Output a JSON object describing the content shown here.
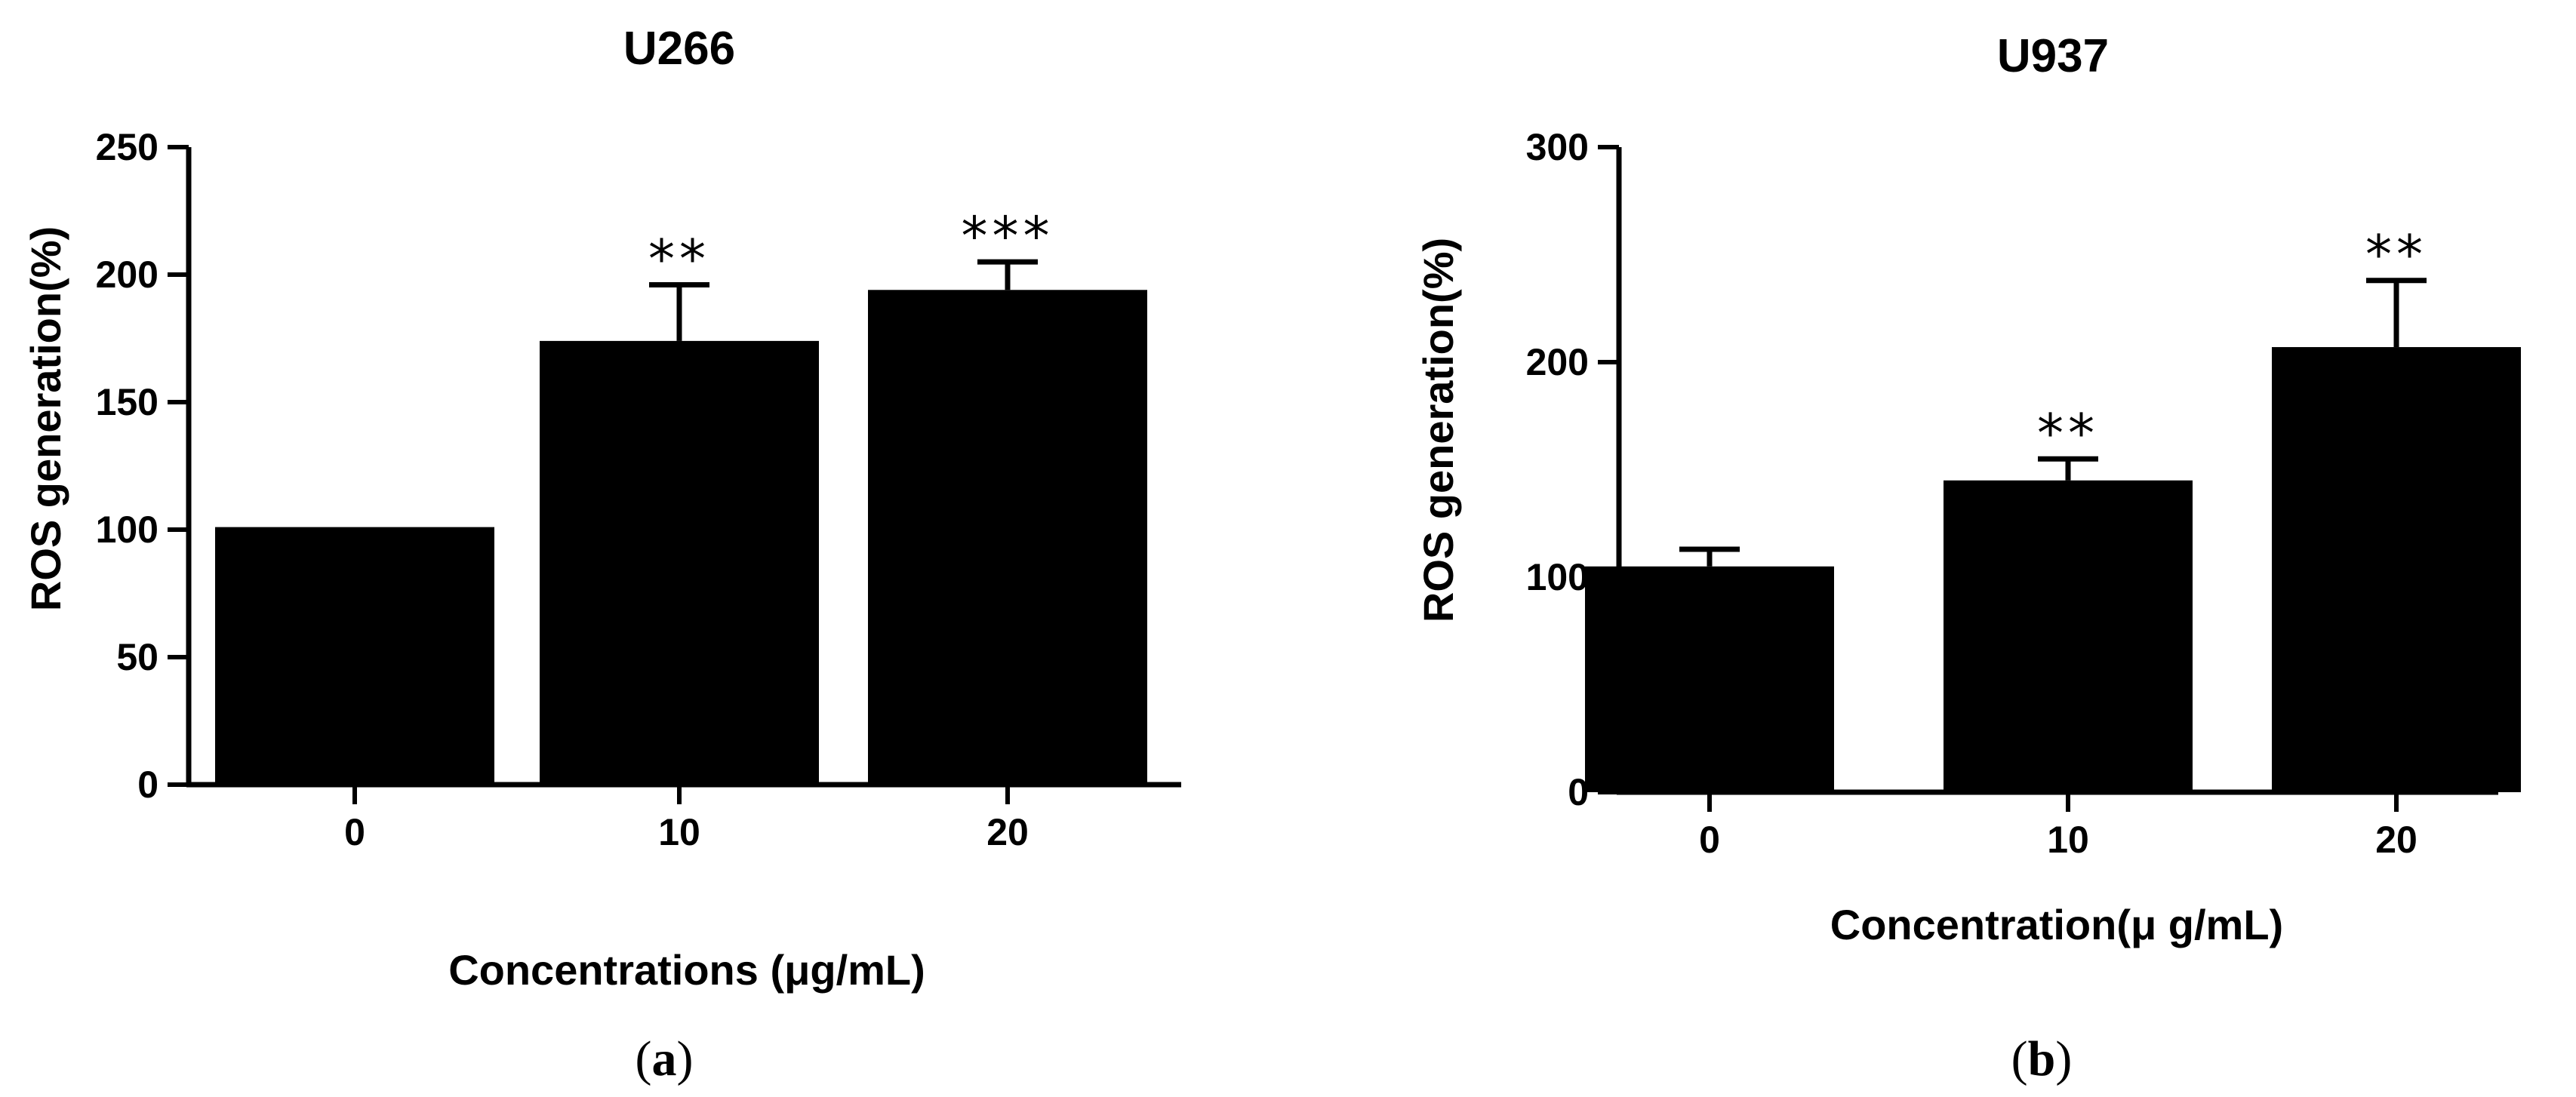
{
  "chart_data": [
    {
      "type": "bar",
      "panel": "a",
      "title": "U266",
      "xlabel": "Concentrations (μg/mL)",
      "ylabel": "ROS generation(%)",
      "categories": [
        "0",
        "10",
        "20"
      ],
      "values": [
        101,
        174,
        194
      ],
      "error": [
        0,
        22,
        11
      ],
      "significance": [
        "",
        "**",
        "***"
      ],
      "ylim": [
        0,
        250
      ],
      "yticks": [
        0,
        50,
        100,
        150,
        200,
        250
      ],
      "grid": false,
      "bar_color": "#000000"
    },
    {
      "type": "bar",
      "panel": "b",
      "title": "U937",
      "xlabel": "Concentration(μ g/mL)",
      "ylabel": "ROS generation(%)",
      "categories": [
        "0",
        "10",
        "20"
      ],
      "values": [
        105,
        145,
        207
      ],
      "error": [
        8,
        10,
        31
      ],
      "significance": [
        "",
        "**",
        "**"
      ],
      "ylim": [
        0,
        300
      ],
      "yticks": [
        0,
        100,
        200,
        300
      ],
      "grid": false,
      "bar_color": "#000000"
    }
  ]
}
